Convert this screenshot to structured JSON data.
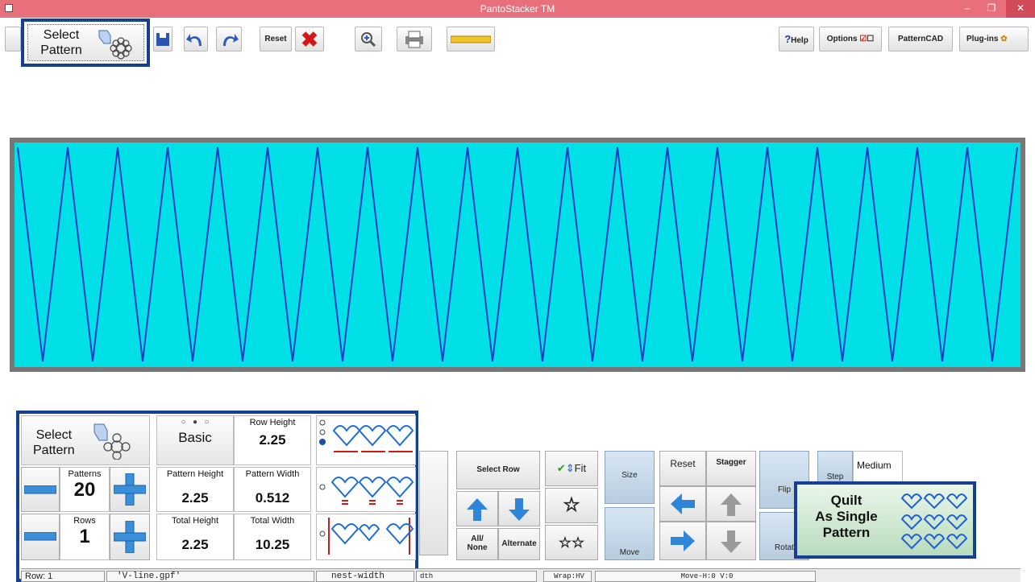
{
  "window": {
    "title": "PantoStacker TM"
  },
  "toolbar": {
    "select_pattern_line1": "Select",
    "select_pattern_line2": "Pattern",
    "reset_label": "Reset",
    "help_label": "Help",
    "options_label": "Options",
    "patterncad_label": "PatternCAD",
    "plugins_label": "Plug-ins"
  },
  "panel": {
    "select_line1": "Select",
    "select_line2": "Pattern",
    "mode_label": "Basic",
    "row_height_caption": "Row Height",
    "row_height_value": "2.25",
    "patterns_caption": "Patterns",
    "patterns_value": "20",
    "rows_caption": "Rows",
    "rows_value": "1",
    "pattern_height_caption": "Pattern Height",
    "pattern_height_value": "2.25",
    "pattern_width_caption": "Pattern Width",
    "pattern_width_value": "0.512",
    "total_height_caption": "Total Height",
    "total_height_value": "2.25",
    "total_width_caption": "Total Width",
    "total_width_value": "10.25"
  },
  "controls": {
    "select_row": "Select Row",
    "fit": "Fit",
    "all_none_1": "All/",
    "all_none_2": "None",
    "alternate": "Alternate",
    "size": "Size",
    "move": "Move",
    "reset": "Reset",
    "stagger": "Stagger",
    "flip": "Flip",
    "rotate": "Rotat",
    "step": "Step",
    "medium": "Medium"
  },
  "quilt": {
    "line1": "Quilt",
    "line2": "As Single",
    "line3": "Pattern"
  },
  "status": {
    "row": "Row: 1",
    "file": "'V-line.gpf'",
    "nest": "nest-width",
    "dth": "dth",
    "wrap": "Wrap:HV",
    "move": "Move-H:0 V:0"
  },
  "colors": {
    "canvas": "#00e0e6",
    "line": "#1e3cc8",
    "highlight": "#163f91",
    "titlebar": "#e8707c"
  }
}
